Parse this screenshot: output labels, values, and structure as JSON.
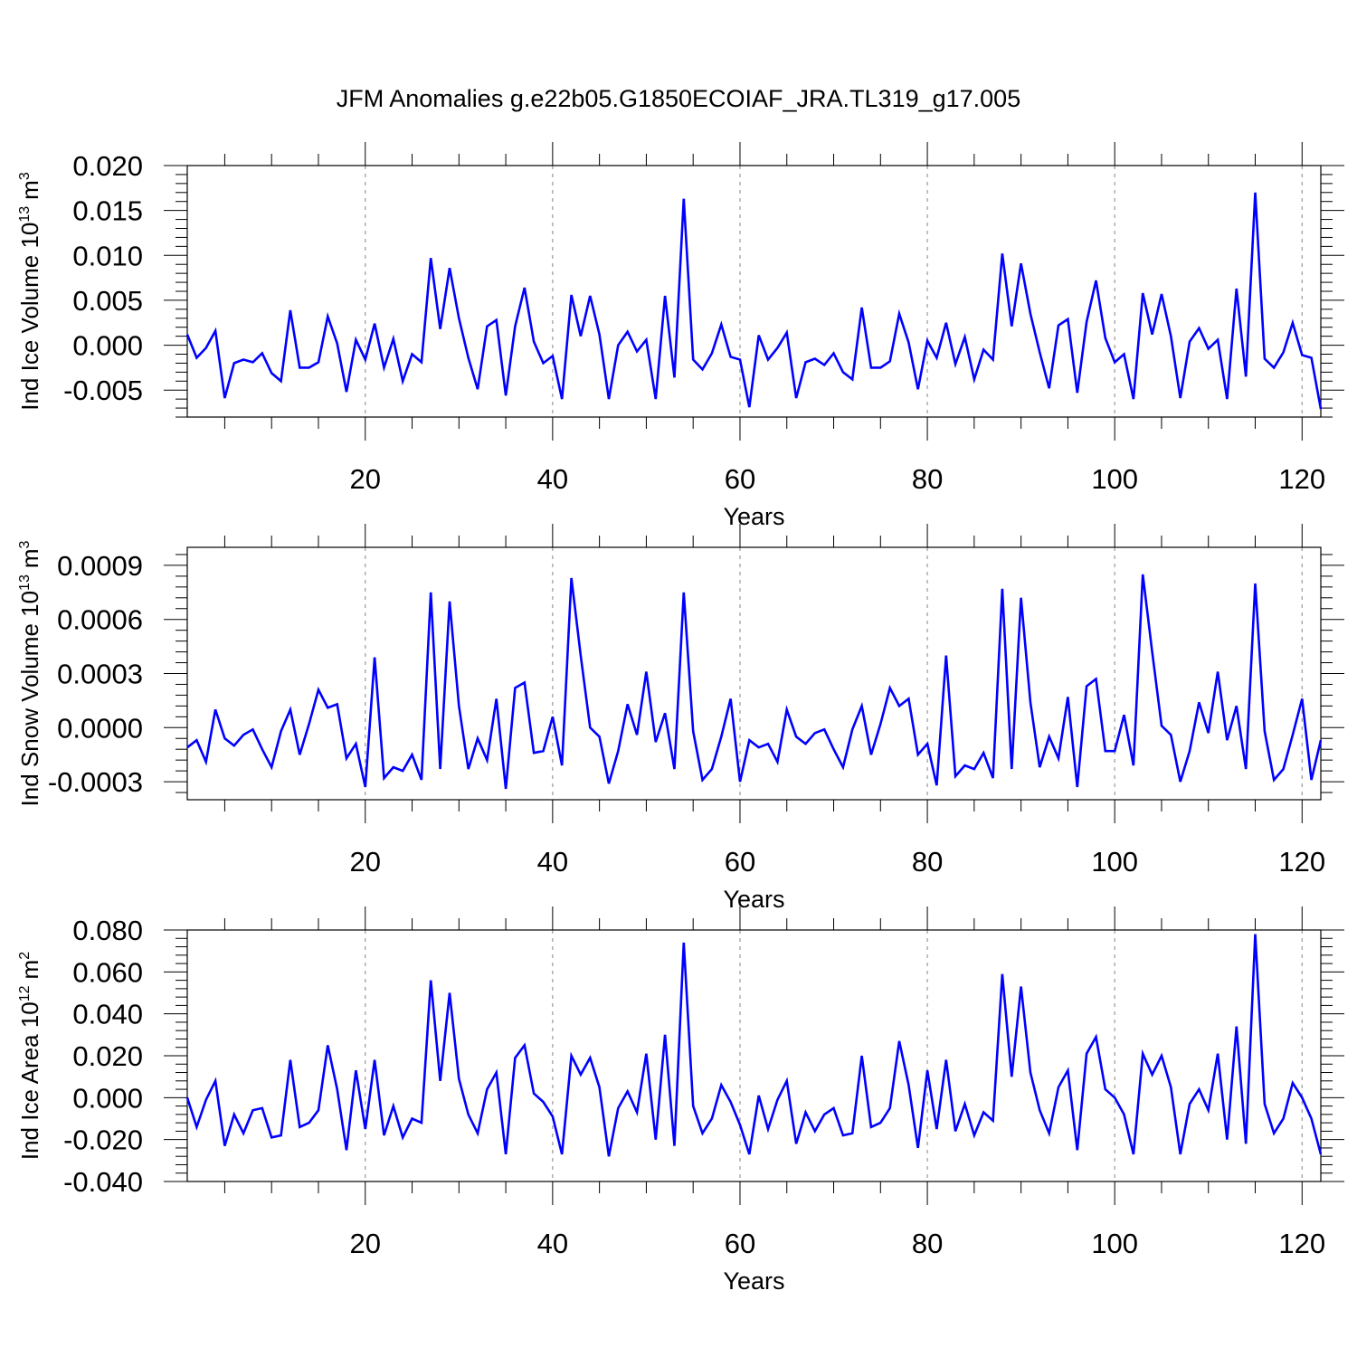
{
  "colors": {
    "line": "#0000ff",
    "axis": "#000000",
    "grid": "#999999",
    "background": "#ffffff"
  },
  "chart_data": {
    "title": "JFM Anomalies g.e22b05.G1850ECOIAF_JRA.TL319_g17.005",
    "panels": [
      {
        "type": "line",
        "ylabel_prefix": "Ind Ice Volume 10",
        "ylabel_exp": "13",
        "ylabel_unit": "m",
        "ylabel_unit_exp": "3",
        "xlabel": "Years",
        "xlim": [
          1,
          122
        ],
        "ylim": [
          -0.008,
          0.02
        ],
        "x_ticks": [
          "20",
          "40",
          "60",
          "80",
          "100",
          "120"
        ],
        "y_ticks": [
          "0.020",
          "0.015",
          "0.010",
          "0.005",
          "0.000",
          "-0.005"
        ],
        "grid": "vertical dashed at x = 20, 40, 60, 80, 100, 120",
        "series": [
          {
            "name": "Ind Ice Volume",
            "values": [
              0.0012,
              -0.0014,
              -0.0003,
              0.0016,
              -0.0059,
              -0.002,
              -0.0016,
              -0.0019,
              -0.0009,
              -0.0031,
              -0.004,
              0.0039,
              -0.0025,
              -0.0025,
              -0.0019,
              0.0032,
              0.0002,
              -0.0052,
              0.0006,
              -0.0016,
              0.0024,
              -0.0025,
              0.0007,
              -0.004,
              -0.001,
              -0.0019,
              0.0097,
              0.0018,
              0.0086,
              0.003,
              -0.0014,
              -0.0049,
              0.0021,
              0.0028,
              -0.0056,
              0.0021,
              0.0064,
              0.0004,
              -0.002,
              -0.0012,
              -0.006,
              0.0056,
              0.001,
              0.0055,
              0.0012,
              -0.006,
              0.0,
              0.0015,
              -0.0007,
              0.0006,
              -0.006,
              0.0055,
              -0.0036,
              0.0163,
              -0.0016,
              -0.0027,
              -0.0009,
              0.0023,
              -0.0013,
              -0.0016,
              -0.0069,
              0.0011,
              -0.0016,
              -0.0003,
              0.0014,
              -0.0059,
              -0.0019,
              -0.0015,
              -0.0022,
              -0.0009,
              -0.003,
              -0.0038,
              0.0042,
              -0.0025,
              -0.0025,
              -0.0018,
              0.0035,
              0.0003,
              -0.0049,
              0.0005,
              -0.0014,
              0.0025,
              -0.0021,
              0.0009,
              -0.0038,
              -0.0005,
              -0.0016,
              0.0102,
              0.0021,
              0.0091,
              0.0035,
              -0.0008,
              -0.0048,
              0.0022,
              0.0029,
              -0.0053,
              0.0026,
              0.0072,
              0.0008,
              -0.0019,
              -0.001,
              -0.006,
              0.0058,
              0.0012,
              0.0057,
              0.001,
              -0.0059,
              0.0004,
              0.0019,
              -0.0004,
              0.0006,
              -0.006,
              0.0063,
              -0.0035,
              0.017,
              -0.0015,
              -0.0025,
              -0.0008,
              0.0025,
              -0.0011,
              -0.0014,
              -0.0071
            ]
          }
        ]
      },
      {
        "type": "line",
        "ylabel_prefix": "Ind Snow Volume 10",
        "ylabel_exp": "13",
        "ylabel_unit": "m",
        "ylabel_unit_exp": "3",
        "xlabel": "Years",
        "xlim": [
          1,
          122
        ],
        "ylim": [
          -0.0004,
          0.001
        ],
        "x_ticks": [
          "20",
          "40",
          "60",
          "80",
          "100",
          "120"
        ],
        "y_ticks": [
          "0.0009",
          "0.0006",
          "0.0003",
          "0.0000",
          "-0.0003"
        ],
        "grid": "vertical dashed at x = 20, 40, 60, 80, 100, 120",
        "series": [
          {
            "name": "Ind Snow Volume",
            "values": [
              -0.00011,
              -7e-05,
              -0.00019,
              0.0001,
              -6e-05,
              -0.0001,
              -4e-05,
              -1e-05,
              -0.00012,
              -0.00022,
              -2e-05,
              0.0001,
              -0.00015,
              2e-05,
              0.00021,
              0.00011,
              0.00013,
              -0.00017,
              -9e-05,
              -0.00033,
              0.00039,
              -0.00028,
              -0.00022,
              -0.00024,
              -0.00015,
              -0.00029,
              0.00075,
              -0.00023,
              0.0007,
              0.00012,
              -0.00023,
              -6e-05,
              -0.00018,
              0.00016,
              -0.00034,
              0.00022,
              0.00025,
              -0.00014,
              -0.00013,
              6e-05,
              -0.00021,
              0.00083,
              0.0004,
              0.0,
              -5e-05,
              -0.00031,
              -0.00013,
              0.00013,
              -4e-05,
              0.00031,
              -8e-05,
              8e-05,
              -0.00023,
              0.00075,
              -2e-05,
              -0.00029,
              -0.00023,
              -5e-05,
              0.00016,
              -0.0003,
              -7e-05,
              -0.00011,
              -9e-05,
              -0.00019,
              0.0001,
              -5e-05,
              -9e-05,
              -3e-05,
              -1e-05,
              -0.00012,
              -0.00022,
              -1e-05,
              0.00012,
              -0.00015,
              2e-05,
              0.00022,
              0.00012,
              0.00016,
              -0.00015,
              -9e-05,
              -0.00032,
              0.0004,
              -0.00027,
              -0.00021,
              -0.00023,
              -0.00014,
              -0.00028,
              0.00077,
              -0.00023,
              0.00072,
              0.00014,
              -0.00022,
              -5e-05,
              -0.00017,
              0.00017,
              -0.00033,
              0.00023,
              0.00027,
              -0.00013,
              -0.00013,
              7e-05,
              -0.00021,
              0.00085,
              0.00042,
              1e-05,
              -4e-05,
              -0.0003,
              -0.00013,
              0.00014,
              -3e-05,
              0.00031,
              -7e-05,
              0.00012,
              -0.00023,
              0.0008,
              -2e-05,
              -0.00029,
              -0.00023,
              -4e-05,
              0.00016,
              -0.00029,
              -7e-05
            ]
          }
        ]
      },
      {
        "type": "line",
        "ylabel_prefix": "Ind Ice Area 10",
        "ylabel_exp": "12",
        "ylabel_unit": "m",
        "ylabel_unit_exp": "2",
        "xlabel": "Years",
        "xlim": [
          1,
          122
        ],
        "ylim": [
          -0.04,
          0.08
        ],
        "x_ticks": [
          "20",
          "40",
          "60",
          "80",
          "100",
          "120"
        ],
        "y_ticks": [
          "0.080",
          "0.060",
          "0.040",
          "0.020",
          "0.000",
          "-0.020",
          "-0.040"
        ],
        "grid": "vertical dashed at x = 20, 40, 60, 80, 100, 120",
        "series": [
          {
            "name": "Ind Ice Area",
            "values": [
              0.0,
              -0.014,
              -0.001,
              0.008,
              -0.023,
              -0.008,
              -0.017,
              -0.006,
              -0.005,
              -0.019,
              -0.018,
              0.018,
              -0.014,
              -0.012,
              -0.006,
              0.025,
              0.004,
              -0.025,
              0.013,
              -0.015,
              0.018,
              -0.018,
              -0.004,
              -0.019,
              -0.01,
              -0.012,
              0.056,
              0.008,
              0.05,
              0.009,
              -0.008,
              -0.017,
              0.004,
              0.012,
              -0.027,
              0.019,
              0.025,
              0.002,
              -0.002,
              -0.009,
              -0.027,
              0.02,
              0.011,
              0.019,
              0.005,
              -0.028,
              -0.005,
              0.003,
              -0.007,
              0.021,
              -0.02,
              0.03,
              -0.023,
              0.074,
              -0.004,
              -0.017,
              -0.01,
              0.006,
              -0.002,
              -0.013,
              -0.027,
              0.001,
              -0.015,
              -0.001,
              0.008,
              -0.022,
              -0.007,
              -0.016,
              -0.008,
              -0.005,
              -0.018,
              -0.017,
              0.02,
              -0.014,
              -0.012,
              -0.005,
              0.027,
              0.006,
              -0.024,
              0.013,
              -0.015,
              0.018,
              -0.016,
              -0.003,
              -0.018,
              -0.007,
              -0.011,
              0.059,
              0.01,
              0.053,
              0.012,
              -0.006,
              -0.017,
              0.005,
              0.013,
              -0.025,
              0.021,
              0.029,
              0.004,
              0.0,
              -0.008,
              -0.027,
              0.021,
              0.011,
              0.02,
              0.005,
              -0.027,
              -0.003,
              0.004,
              -0.006,
              0.021,
              -0.02,
              0.034,
              -0.022,
              0.078,
              -0.003,
              -0.017,
              -0.01,
              0.007,
              0.0,
              -0.01,
              -0.027
            ]
          }
        ]
      }
    ]
  }
}
